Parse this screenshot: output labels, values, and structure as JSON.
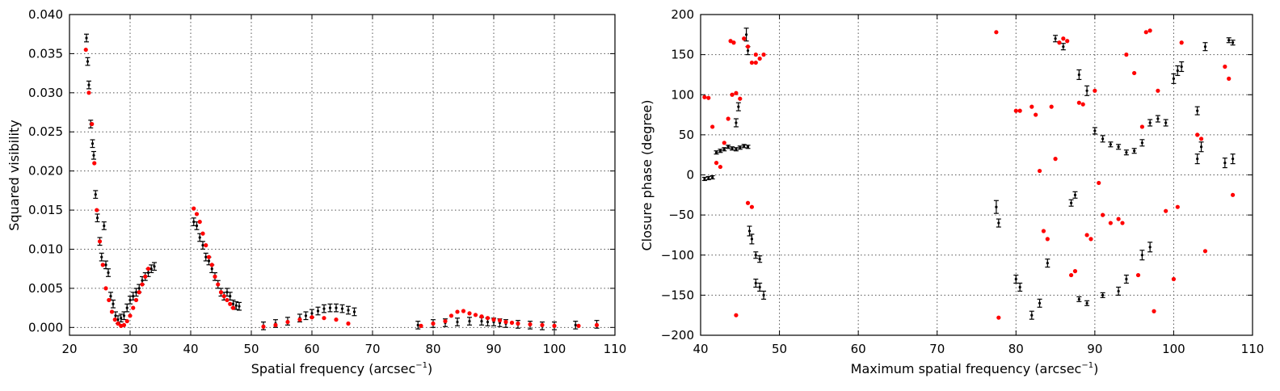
{
  "colors": {
    "observed": "#000000",
    "model": "#ff0000"
  },
  "chart_data": [
    {
      "type": "scatter",
      "xlabel": "Spatial frequency (arcsec",
      "xlabel_sup": "−1",
      "xlabel_end": ")",
      "ylabel": "Squared visibility",
      "xlim": [
        20,
        110
      ],
      "ylim": [
        -0.001,
        0.04
      ],
      "xticks": [
        20,
        30,
        40,
        50,
        60,
        70,
        80,
        90,
        100,
        110
      ],
      "xtick_labels": [
        "20",
        "30",
        "40",
        "50",
        "60",
        "70",
        "80",
        "90",
        "100",
        "110"
      ],
      "yticks": [
        0.0,
        0.005,
        0.01,
        0.015,
        0.02,
        0.025,
        0.03,
        0.035,
        0.04
      ],
      "ytick_labels": [
        "0.000",
        "0.005",
        "0.010",
        "0.015",
        "0.020",
        "0.025",
        "0.030",
        "0.035",
        "0.040"
      ],
      "grid": true,
      "series": [
        {
          "style": "errorbar",
          "color": "#000000",
          "x": [
            22.8,
            23.0,
            23.2,
            23.5,
            23.8,
            24.0,
            24.3,
            24.6,
            25.0,
            25.3,
            25.7,
            26.0,
            26.4,
            26.8,
            27.2,
            27.6,
            28.0,
            28.5,
            29.0,
            29.5,
            30.0,
            30.5,
            31.0,
            31.5,
            32.0,
            32.5,
            33.0,
            33.5,
            34.0,
            40.5,
            41.0,
            41.5,
            42.0,
            42.5,
            43.0,
            43.5,
            44.0,
            44.5,
            45.0,
            45.5,
            46.0,
            46.5,
            47.0,
            47.5,
            48.0,
            52.0,
            54.0,
            56.0,
            58.0,
            59.0,
            60.0,
            61.0,
            62.0,
            63.0,
            64.0,
            65.0,
            66.0,
            67.0,
            77.5,
            80.0,
            82.0,
            84.0,
            86.0,
            88.0,
            89.0,
            90.0,
            91.0,
            92.0,
            94.0,
            96.0,
            98.0,
            100.0,
            103.5,
            107.0
          ],
          "y": [
            0.037,
            0.034,
            0.031,
            0.026,
            0.0235,
            0.022,
            0.017,
            0.014,
            0.011,
            0.009,
            0.013,
            0.008,
            0.007,
            0.004,
            0.003,
            0.0015,
            0.001,
            0.0012,
            0.0015,
            0.0025,
            0.0035,
            0.004,
            0.0045,
            0.005,
            0.006,
            0.0065,
            0.007,
            0.0075,
            0.0078,
            0.0135,
            0.013,
            0.0115,
            0.0105,
            0.009,
            0.0085,
            0.0075,
            0.0065,
            0.0055,
            0.0045,
            0.004,
            0.0045,
            0.004,
            0.003,
            0.0028,
            0.0027,
            0.0002,
            0.0005,
            0.0008,
            0.0012,
            0.0015,
            0.0018,
            0.0021,
            0.0024,
            0.0025,
            0.0025,
            0.0024,
            0.0022,
            0.002,
            0.0003,
            0.0005,
            0.0006,
            0.0007,
            0.0008,
            0.0008,
            0.0007,
            0.0007,
            0.0006,
            0.0005,
            0.0004,
            0.0003,
            0.0002,
            0.0002,
            0.0003,
            0.0004
          ]
        },
        {
          "style": "points",
          "color": "#ff0000",
          "x": [
            22.7,
            23.2,
            23.7,
            24.1,
            24.5,
            25.0,
            25.5,
            26.0,
            26.5,
            27.0,
            27.5,
            28.0,
            28.5,
            29.0,
            29.5,
            30.0,
            30.5,
            31.0,
            31.5,
            32.0,
            32.5,
            33.0,
            40.5,
            41.0,
            41.5,
            42.0,
            42.5,
            43.0,
            43.5,
            44.0,
            44.5,
            45.0,
            45.5,
            46.0,
            46.5,
            47.0,
            52.0,
            54.0,
            56.0,
            58.0,
            60.0,
            62.0,
            64.0,
            66.0,
            78.0,
            80.0,
            82.0,
            83.0,
            84.0,
            85.0,
            86.0,
            87.0,
            88.0,
            89.0,
            90.0,
            91.0,
            92.0,
            93.0,
            94.0,
            96.0,
            98.0,
            100.0,
            104.0,
            107.0
          ],
          "y": [
            0.0355,
            0.03,
            0.026,
            0.021,
            0.015,
            0.011,
            0.008,
            0.005,
            0.0035,
            0.002,
            0.001,
            0.0005,
            0.0002,
            0.0003,
            0.0008,
            0.0015,
            0.0025,
            0.0035,
            0.0045,
            0.0055,
            0.0065,
            0.0075,
            0.0152,
            0.0145,
            0.0135,
            0.012,
            0.0105,
            0.009,
            0.008,
            0.0065,
            0.0055,
            0.0045,
            0.004,
            0.0035,
            0.003,
            0.0025,
            0.0001,
            0.0003,
            0.0007,
            0.001,
            0.0013,
            0.0012,
            0.001,
            0.0005,
            0.0002,
            0.0005,
            0.0008,
            0.0015,
            0.002,
            0.0021,
            0.0018,
            0.0016,
            0.0014,
            0.0012,
            0.001,
            0.0009,
            0.0007,
            0.0006,
            0.0005,
            0.0004,
            0.0003,
            0.0002,
            0.0002,
            0.0003
          ]
        }
      ]
    },
    {
      "type": "scatter",
      "xlabel": "Maximum spatial frequency (arcsec",
      "xlabel_sup": "−1",
      "xlabel_end": ")",
      "ylabel": "Closure phase (degree)",
      "xlim": [
        40,
        110
      ],
      "ylim": [
        -200,
        200
      ],
      "xticks": [
        40,
        50,
        60,
        70,
        80,
        90,
        100,
        110
      ],
      "xtick_labels": [
        "40",
        "50",
        "60",
        "70",
        "80",
        "90",
        "100",
        "110"
      ],
      "yticks": [
        -200,
        -150,
        -100,
        -50,
        0,
        50,
        100,
        150,
        200
      ],
      "ytick_labels": [
        "−200",
        "−150",
        "−100",
        "−50",
        "0",
        "50",
        "100",
        "150",
        "200"
      ],
      "grid": true,
      "series": [
        {
          "style": "errorbar",
          "color": "#000000",
          "x": [
            40.5,
            41.0,
            41.5,
            42.0,
            42.5,
            43.0,
            43.5,
            44.0,
            44.5,
            45.0,
            45.5,
            46.0,
            46.2,
            46.5,
            47.0,
            47.5,
            48.0,
            45.8,
            46.0,
            44.8,
            44.5,
            47.0,
            47.5,
            77.5,
            77.8,
            80.0,
            80.5,
            82.0,
            83.0,
            84.0,
            85.0,
            86.0,
            87.0,
            87.5,
            88.0,
            89.0,
            90.0,
            91.0,
            92.0,
            93.0,
            94.0,
            95.0,
            96.0,
            97.0,
            98.0,
            99.0,
            100.0,
            100.5,
            101.0,
            103.0,
            103.5,
            104.0,
            107.0,
            107.5,
            103.0,
            106.5,
            107.5,
            97.0,
            96.0,
            94.0,
            93.0,
            91.0,
            89.0,
            88.0
          ],
          "y": [
            -5,
            -4,
            -3,
            28,
            30,
            32,
            35,
            33,
            32,
            34,
            36,
            35,
            -70,
            -80,
            -135,
            -140,
            -150,
            175,
            155,
            85,
            65,
            -100,
            -105,
            -40,
            -60,
            -130,
            -140,
            -175,
            -160,
            -110,
            170,
            160,
            -35,
            -25,
            125,
            105,
            55,
            45,
            38,
            35,
            28,
            30,
            40,
            65,
            70,
            65,
            120,
            130,
            135,
            20,
            35,
            160,
            168,
            165,
            80,
            15,
            20,
            -90,
            -100,
            -130,
            -145,
            -150,
            -160,
            -155
          ],
          "err": [
            2,
            2,
            2,
            2,
            2,
            2,
            2,
            2,
            2,
            2,
            2,
            2,
            6,
            6,
            5,
            5,
            5,
            8,
            5,
            5,
            5,
            4,
            4,
            8,
            5,
            5,
            5,
            5,
            5,
            5,
            4,
            4,
            4,
            4,
            6,
            6,
            4,
            4,
            3,
            3,
            3,
            3,
            4,
            4,
            4,
            4,
            6,
            6,
            6,
            6,
            6,
            5,
            3,
            3,
            5,
            6,
            6,
            6,
            6,
            5,
            5,
            3,
            3,
            3
          ]
        },
        {
          "style": "points",
          "color": "#ff0000",
          "x": [
            40.5,
            41.0,
            41.5,
            42.0,
            42.5,
            43.0,
            43.5,
            44.0,
            44.5,
            45.0,
            43.8,
            44.2,
            46.0,
            46.5,
            47.0,
            47.5,
            48.0,
            45.5,
            46.0,
            46.5,
            47.0,
            44.5,
            77.5,
            77.8,
            80.0,
            80.5,
            82.0,
            82.5,
            83.0,
            83.5,
            84.0,
            84.5,
            85.0,
            85.5,
            86.0,
            86.5,
            87.0,
            87.5,
            88.0,
            88.5,
            89.0,
            89.5,
            90.0,
            90.5,
            91.0,
            92.0,
            93.0,
            93.5,
            94.0,
            95.0,
            95.5,
            96.0,
            96.5,
            97.0,
            97.5,
            98.0,
            99.0,
            100.0,
            100.5,
            101.0,
            103.0,
            103.5,
            104.0,
            106.5,
            107.0,
            107.5
          ],
          "y": [
            97,
            96,
            60,
            15,
            10,
            40,
            70,
            100,
            102,
            95,
            167,
            165,
            -35,
            -40,
            140,
            145,
            150,
            170,
            160,
            140,
            150,
            -175,
            178,
            -178,
            80,
            80,
            85,
            75,
            5,
            -70,
            -80,
            85,
            20,
            165,
            170,
            167,
            -125,
            -120,
            90,
            88,
            -75,
            -80,
            105,
            -10,
            -50,
            -60,
            -55,
            -60,
            150,
            127,
            -125,
            60,
            178,
            180,
            -170,
            105,
            -45,
            -130,
            -40,
            165,
            50,
            45,
            -95,
            135,
            120,
            -25
          ]
        }
      ]
    }
  ]
}
